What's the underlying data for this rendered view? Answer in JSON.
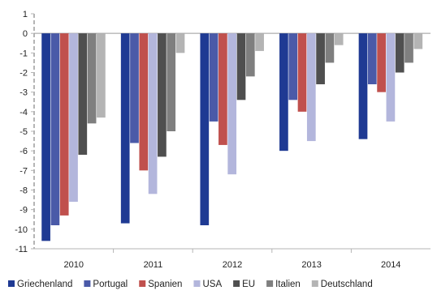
{
  "chart_data": {
    "type": "bar",
    "title": "",
    "xlabel": "",
    "ylabel": "",
    "categories": [
      "2010",
      "2011",
      "2012",
      "2013",
      "2014"
    ],
    "ylim": [
      -11,
      1
    ],
    "yticks": [
      "1",
      "0",
      "-1",
      "-2",
      "-3",
      "-4",
      "-5",
      "-6",
      "-7",
      "-8",
      "-9",
      "-10",
      "-11"
    ],
    "grid": false,
    "legend_position": "bottom",
    "series": [
      {
        "name": "Griechenland",
        "color": "#1f3a93",
        "values": [
          -10.6,
          -9.7,
          -9.8,
          -6.0,
          -5.4
        ]
      },
      {
        "name": "Portugal",
        "color": "#4a5aa8",
        "values": [
          -9.8,
          -5.6,
          -4.5,
          -3.4,
          -2.6
        ]
      },
      {
        "name": "Spanien",
        "color": "#c0504d",
        "values": [
          -9.3,
          -7.0,
          -5.7,
          -4.0,
          -3.0
        ]
      },
      {
        "name": "USA",
        "color": "#b3b6dc",
        "values": [
          -8.6,
          -8.2,
          -7.2,
          -5.5,
          -4.5
        ]
      },
      {
        "name": "EU",
        "color": "#4f4f4f",
        "values": [
          -6.2,
          -6.3,
          -3.4,
          -2.6,
          -2.0
        ]
      },
      {
        "name": "Italien",
        "color": "#7f7f7f",
        "values": [
          -4.6,
          -5.0,
          -2.2,
          -1.5,
          -1.5
        ]
      },
      {
        "name": "Deutschland",
        "color": "#b4b4b4",
        "values": [
          -4.3,
          -1.0,
          -0.9,
          -0.6,
          -0.8
        ]
      }
    ]
  }
}
